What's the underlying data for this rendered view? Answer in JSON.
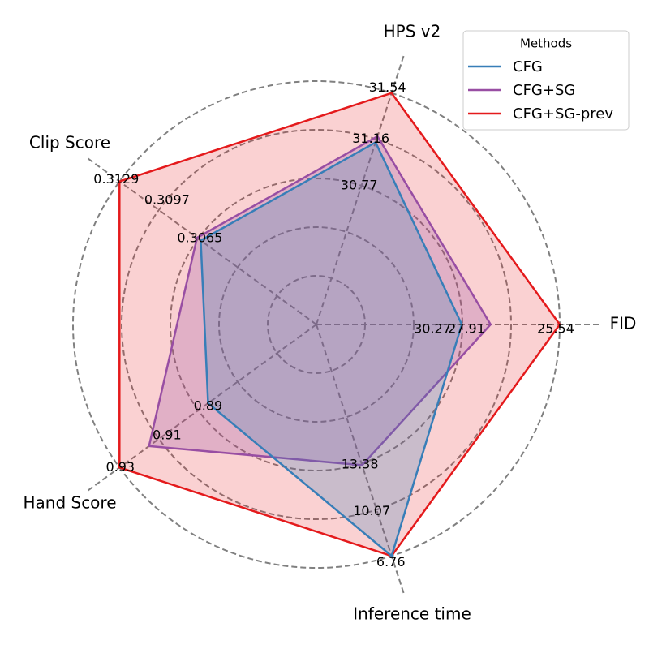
{
  "chart_data": {
    "type": "radar",
    "legend": {
      "title": "Methods",
      "placement": "top-right"
    },
    "axes": [
      {
        "name": "FID",
        "ticks": [
          "30.27",
          "27.91",
          "25.54"
        ]
      },
      {
        "name": "HPS v2",
        "ticks": [
          "30.77",
          "31.16",
          "31.54"
        ]
      },
      {
        "name": "Clip Score",
        "ticks": [
          "0.3065",
          "0.3097",
          "0.3129"
        ]
      },
      {
        "name": "Hand Score",
        "ticks": [
          "0.89",
          "0.91",
          "0.93"
        ]
      },
      {
        "name": "Inference time",
        "ticks": [
          "13.38",
          "10.07",
          "6.76"
        ]
      }
    ],
    "series": [
      {
        "name": "CFG",
        "color": "#377eb8",
        "fill_opacity": 0.25,
        "values": [
          30.3,
          31.13,
          0.3063,
          0.885,
          6.76
        ]
      },
      {
        "name": "CFG+SG",
        "color": "#984ea3",
        "fill_opacity": 0.25,
        "values": [
          28.9,
          31.18,
          0.3066,
          0.915,
          13.25
        ]
      },
      {
        "name": "CFG+SG-prev",
        "color": "#e41a1c",
        "fill_opacity": 0.2,
        "values": [
          25.54,
          31.54,
          0.3129,
          0.93,
          6.76
        ]
      }
    ],
    "grid": "dashed-circles"
  }
}
